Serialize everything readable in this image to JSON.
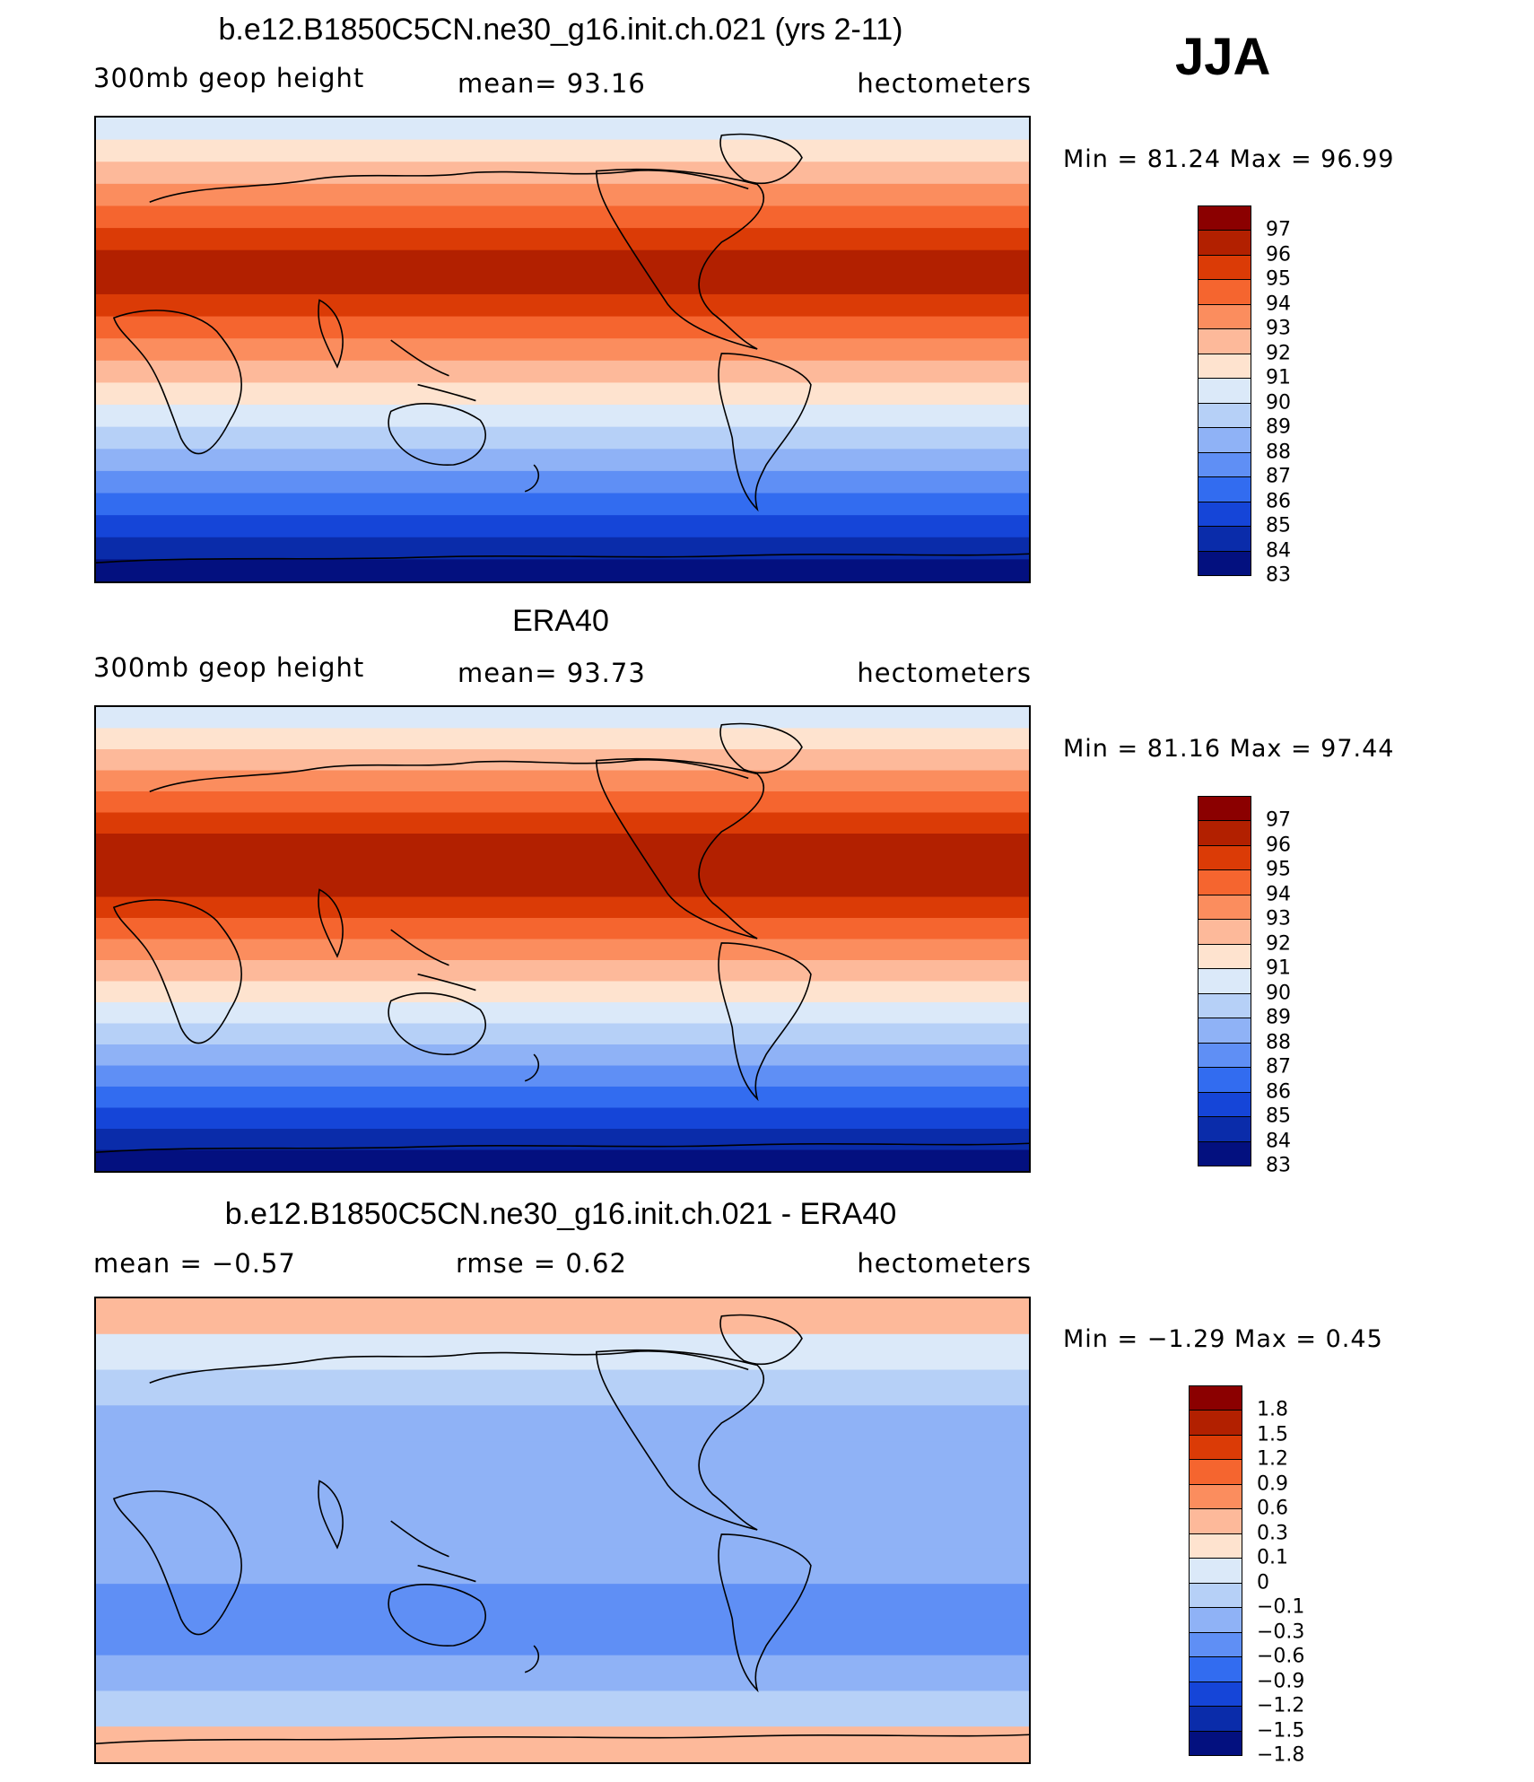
{
  "season": "JJA",
  "panels": [
    {
      "title": "b.e12.B1850C5CN.ne30_g16.init.ch.021 (yrs 2-11)",
      "left_label": "300mb  geop  height",
      "center_label": "mean=   93.16",
      "right_label": "hectometers",
      "minmax": "Min  =    81.24  Max  =    96.99",
      "colorbar": {
        "colors": [
          "#8b0000",
          "#b22000",
          "#db3b06",
          "#f5652f",
          "#fb8d5e",
          "#fdb99a",
          "#fee3cf",
          "#dbe9f9",
          "#b6d0f7",
          "#8fb2f6",
          "#5f8ff5",
          "#326cf0",
          "#1545d8",
          "#0a2caa",
          "#03107f"
        ],
        "labels": [
          "97",
          "96",
          "95",
          "94",
          "93",
          "92",
          "91",
          "90",
          "89",
          "88",
          "87",
          "86",
          "85",
          "84",
          "83"
        ]
      },
      "bands": [
        "#dbe9f9",
        "#fee3cf",
        "#fdb99a",
        "#fb8d5e",
        "#f5652f",
        "#db3b06",
        "#b22000",
        "#b22000",
        "#db3b06",
        "#f5652f",
        "#fb8d5e",
        "#fdb99a",
        "#fee3cf",
        "#dbe9f9",
        "#b6d0f7",
        "#8fb2f6",
        "#5f8ff5",
        "#326cf0",
        "#1545d8",
        "#0a2caa",
        "#03107f"
      ]
    },
    {
      "title": "ERA40",
      "left_label": "300mb  geop  height",
      "center_label": "mean=   93.73",
      "right_label": "hectometers",
      "minmax": "Min  =    81.16  Max  =    97.44",
      "colorbar": {
        "colors": [
          "#8b0000",
          "#b22000",
          "#db3b06",
          "#f5652f",
          "#fb8d5e",
          "#fdb99a",
          "#fee3cf",
          "#dbe9f9",
          "#b6d0f7",
          "#8fb2f6",
          "#5f8ff5",
          "#326cf0",
          "#1545d8",
          "#0a2caa",
          "#03107f"
        ],
        "labels": [
          "97",
          "96",
          "95",
          "94",
          "93",
          "92",
          "91",
          "90",
          "89",
          "88",
          "87",
          "86",
          "85",
          "84",
          "83"
        ]
      },
      "bands": [
        "#dbe9f9",
        "#fee3cf",
        "#fdb99a",
        "#fb8d5e",
        "#f5652f",
        "#db3b06",
        "#b22000",
        "#b22000",
        "#b22000",
        "#db3b06",
        "#f5652f",
        "#fb8d5e",
        "#fdb99a",
        "#fee3cf",
        "#dbe9f9",
        "#b6d0f7",
        "#8fb2f6",
        "#5f8ff5",
        "#326cf0",
        "#1545d8",
        "#0a2caa",
        "#03107f"
      ]
    },
    {
      "title": "b.e12.B1850C5CN.ne30_g16.init.ch.021 - ERA40",
      "left_label": "mean  =   −0.57",
      "center_label": "rmse  =     0.62",
      "right_label": "hectometers",
      "minmax": "Min  =   −1.29  Max  =      0.45",
      "colorbar": {
        "colors": [
          "#8b0000",
          "#b22000",
          "#db3b06",
          "#f5652f",
          "#fb8d5e",
          "#fdb99a",
          "#fee3cf",
          "#dbe9f9",
          "#b6d0f7",
          "#8fb2f6",
          "#5f8ff5",
          "#326cf0",
          "#1545d8",
          "#0a2caa",
          "#03107f"
        ],
        "labels": [
          "1.8",
          "1.5",
          "1.2",
          "0.9",
          "0.6",
          "0.3",
          "0.1",
          "0",
          "−0.1",
          "−0.3",
          "−0.6",
          "−0.9",
          "−1.2",
          "−1.5",
          "−1.8"
        ]
      },
      "bands": [
        "#fdb99a",
        "#dbe9f9",
        "#b6d0f7",
        "#8fb2f6",
        "#8fb2f6",
        "#8fb2f6",
        "#8fb2f6",
        "#8fb2f6",
        "#5f8ff5",
        "#5f8ff5",
        "#8fb2f6",
        "#b6d0f7",
        "#fdb99a"
      ]
    }
  ]
}
